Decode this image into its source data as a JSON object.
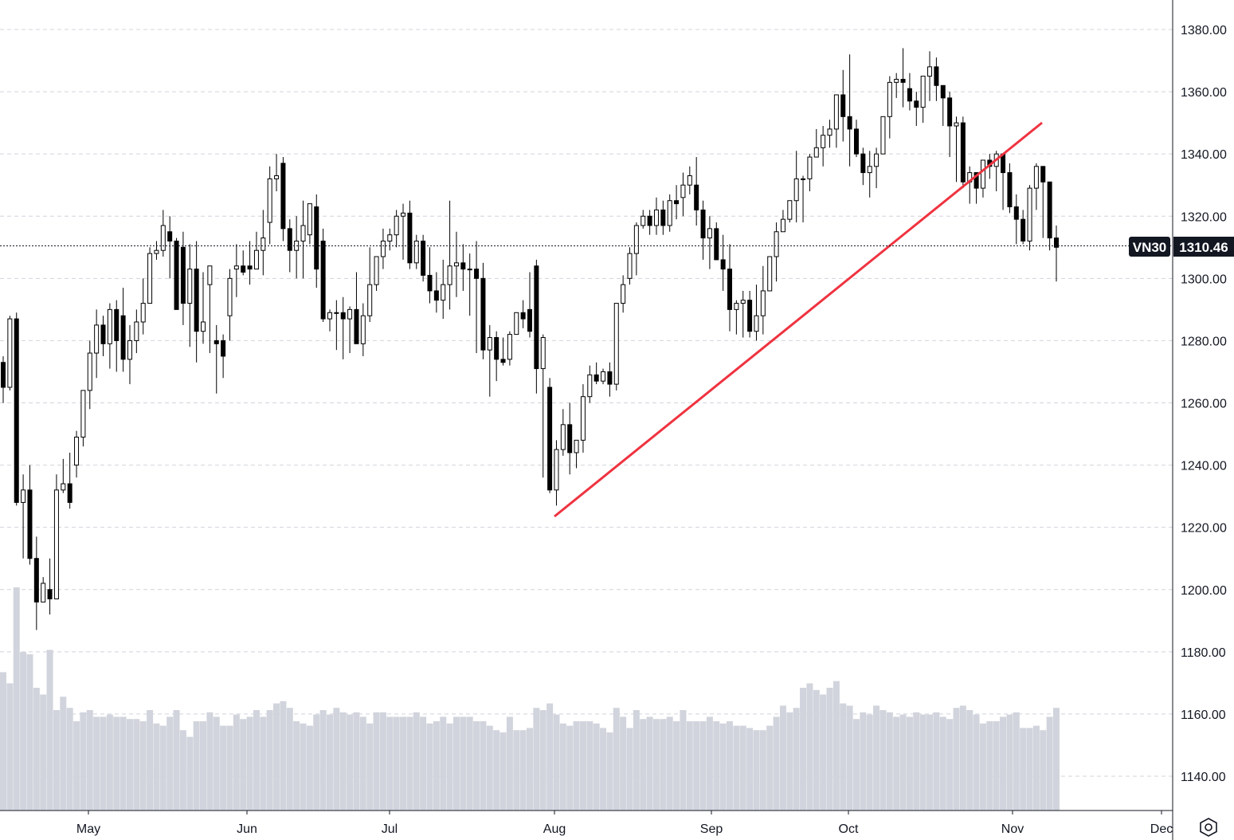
{
  "symbol": "VN30",
  "last_price": "1310.46",
  "chart_data": {
    "type": "candlestick",
    "y_ticks": [
      "1140.00",
      "1160.00",
      "1180.00",
      "1200.00",
      "1220.00",
      "1240.00",
      "1260.00",
      "1280.00",
      "1300.00",
      "1320.00",
      "1340.00",
      "1360.00",
      "1380.00"
    ],
    "x_ticks": [
      "May",
      "Jun",
      "Jul",
      "Aug",
      "Sep",
      "Oct",
      "Nov",
      "Dec"
    ],
    "ylim": [
      1128,
      1390
    ],
    "grid": true,
    "last_price_value": 1310.46,
    "volume_bars": "relative, light grey, at bottom",
    "candles_ohlc": [
      [
        1273,
        1275,
        1260,
        1265
      ],
      [
        1265,
        1288,
        1264,
        1287
      ],
      [
        1287,
        1289,
        1227,
        1228
      ],
      [
        1228,
        1237,
        1210,
        1232
      ],
      [
        1232,
        1240,
        1208,
        1210
      ],
      [
        1210,
        1217,
        1187,
        1196
      ],
      [
        1196,
        1204,
        1198,
        1202
      ],
      [
        1200,
        1210,
        1192,
        1197
      ],
      [
        1197,
        1237,
        1208,
        1232
      ],
      [
        1232,
        1242,
        1231,
        1234
      ],
      [
        1234,
        1244,
        1226,
        1228
      ],
      [
        1240,
        1251,
        1236,
        1249
      ],
      [
        1249,
        1264,
        1246,
        1264
      ],
      [
        1264,
        1280,
        1258,
        1276
      ],
      [
        1276,
        1290,
        1268,
        1285
      ],
      [
        1285,
        1288,
        1275,
        1279
      ],
      [
        1279,
        1292,
        1271,
        1290
      ],
      [
        1290,
        1293,
        1270,
        1280
      ],
      [
        1288,
        1297,
        1270,
        1274
      ],
      [
        1274,
        1285,
        1266,
        1280
      ],
      [
        1280,
        1290,
        1276,
        1286
      ],
      [
        1286,
        1300,
        1282,
        1292
      ],
      [
        1292,
        1310,
        1298,
        1308
      ],
      [
        1308,
        1312,
        1306,
        1309
      ],
      [
        1309,
        1322,
        1307,
        1317
      ],
      [
        1315,
        1320,
        1300,
        1312
      ],
      [
        1312,
        1313,
        1293,
        1290
      ],
      [
        1310,
        1315,
        1285,
        1292
      ],
      [
        1292,
        1311,
        1278,
        1303
      ],
      [
        1303,
        1312,
        1273,
        1283
      ],
      [
        1283,
        1302,
        1279,
        1286
      ],
      [
        1298,
        1303,
        1276,
        1304
      ],
      [
        1280,
        1285,
        1263,
        1279
      ],
      [
        1280,
        1282,
        1268,
        1275
      ],
      [
        1288,
        1303,
        1280,
        1300
      ],
      [
        1303,
        1311,
        1294,
        1304
      ],
      [
        1304,
        1309,
        1301,
        1302
      ],
      [
        1304,
        1312,
        1298,
        1303
      ],
      [
        1303,
        1315,
        1304,
        1309
      ],
      [
        1309,
        1322,
        1301,
        1313
      ],
      [
        1318,
        1336,
        1311,
        1332
      ],
      [
        1332,
        1340,
        1328,
        1333
      ],
      [
        1337,
        1339,
        1312,
        1316
      ],
      [
        1316,
        1319,
        1302,
        1309
      ],
      [
        1309,
        1320,
        1300,
        1312
      ],
      [
        1312,
        1325,
        1300,
        1317
      ],
      [
        1314,
        1320,
        1311,
        1324
      ],
      [
        1323,
        1327,
        1297,
        1303
      ],
      [
        1312,
        1316,
        1286,
        1287
      ],
      [
        1287,
        1290,
        1283,
        1289
      ],
      [
        1289,
        1293,
        1277,
        1289
      ],
      [
        1289,
        1294,
        1274,
        1287
      ],
      [
        1287,
        1291,
        1276,
        1290
      ],
      [
        1290,
        1302,
        1286,
        1279
      ],
      [
        1279,
        1292,
        1275,
        1288
      ],
      [
        1288,
        1310,
        1286,
        1298
      ],
      [
        1298,
        1307,
        1296,
        1307
      ],
      [
        1307,
        1316,
        1303,
        1312
      ],
      [
        1312,
        1316,
        1309,
        1314
      ],
      [
        1314,
        1322,
        1310,
        1320
      ],
      [
        1320,
        1324,
        1306,
        1321
      ],
      [
        1321,
        1325,
        1303,
        1305
      ],
      [
        1305,
        1314,
        1303,
        1312
      ],
      [
        1312,
        1314,
        1299,
        1301
      ],
      [
        1301,
        1310,
        1292,
        1296
      ],
      [
        1296,
        1302,
        1289,
        1293
      ],
      [
        1293,
        1306,
        1287,
        1298
      ],
      [
        1298,
        1325,
        1290,
        1304
      ],
      [
        1304,
        1315,
        1294,
        1305
      ],
      [
        1305,
        1311,
        1296,
        1303
      ],
      [
        1303,
        1308,
        1288,
        1303
      ],
      [
        1303,
        1312,
        1276,
        1300
      ],
      [
        1300,
        1305,
        1274,
        1277
      ],
      [
        1277,
        1285,
        1262,
        1281
      ],
      [
        1281,
        1283,
        1267,
        1274
      ],
      [
        1274,
        1281,
        1272,
        1273
      ],
      [
        1274,
        1283,
        1272,
        1282
      ],
      [
        1282,
        1289,
        1283,
        1289
      ],
      [
        1289,
        1293,
        1284,
        1287
      ],
      [
        1290,
        1302,
        1281,
        1283
      ],
      [
        1304,
        1306,
        1263,
        1271
      ],
      [
        1271,
        1282,
        1236,
        1281
      ],
      [
        1265,
        1268,
        1231,
        1232
      ],
      [
        1232,
        1248,
        1227,
        1245
      ],
      [
        1245,
        1258,
        1243,
        1253
      ],
      [
        1253,
        1260,
        1237,
        1244
      ],
      [
        1244,
        1248,
        1239,
        1248
      ],
      [
        1248,
        1266,
        1244,
        1262
      ],
      [
        1262,
        1272,
        1260,
        1269
      ],
      [
        1269,
        1273,
        1266,
        1267
      ],
      [
        1267,
        1271,
        1266,
        1270
      ],
      [
        1270,
        1273,
        1262,
        1266
      ],
      [
        1266,
        1274,
        1264,
        1292
      ],
      [
        1292,
        1301,
        1289,
        1298
      ],
      [
        1300,
        1310,
        1298,
        1308
      ],
      [
        1308,
        1318,
        1301,
        1317
      ],
      [
        1317,
        1322,
        1316,
        1320
      ],
      [
        1320,
        1322,
        1314,
        1317
      ],
      [
        1317,
        1326,
        1314,
        1322
      ],
      [
        1322,
        1325,
        1314,
        1317
      ],
      [
        1317,
        1327,
        1315,
        1325
      ],
      [
        1325,
        1330,
        1319,
        1324
      ],
      [
        1326,
        1334,
        1320,
        1330
      ],
      [
        1330,
        1336,
        1327,
        1333
      ],
      [
        1330,
        1339,
        1317,
        1322
      ],
      [
        1322,
        1325,
        1306,
        1313
      ],
      [
        1313,
        1320,
        1303,
        1316
      ],
      [
        1316,
        1318,
        1310,
        1306
      ],
      [
        1306,
        1314,
        1296,
        1303
      ],
      [
        1303,
        1311,
        1283,
        1290
      ],
      [
        1290,
        1293,
        1282,
        1292
      ],
      [
        1292,
        1296,
        1281,
        1293
      ],
      [
        1293,
        1296,
        1281,
        1283
      ],
      [
        1283,
        1298,
        1280,
        1288
      ],
      [
        1288,
        1304,
        1282,
        1296
      ],
      [
        1296,
        1306,
        1301,
        1307
      ],
      [
        1307,
        1318,
        1299,
        1315
      ],
      [
        1315,
        1322,
        1318,
        1319
      ],
      [
        1319,
        1324,
        1318,
        1325
      ],
      [
        1325,
        1341,
        1318,
        1332
      ],
      [
        1332,
        1333,
        1318,
        1332
      ],
      [
        1332,
        1340,
        1328,
        1339
      ],
      [
        1339,
        1348,
        1339,
        1342
      ],
      [
        1342,
        1349,
        1336,
        1346
      ],
      [
        1346,
        1351,
        1342,
        1348
      ],
      [
        1348,
        1357,
        1342,
        1359
      ],
      [
        1359,
        1367,
        1344,
        1352
      ],
      [
        1352,
        1372,
        1336,
        1348
      ],
      [
        1348,
        1351,
        1339,
        1340
      ],
      [
        1340,
        1342,
        1330,
        1334
      ],
      [
        1334,
        1341,
        1326,
        1336
      ],
      [
        1336,
        1342,
        1329,
        1340
      ],
      [
        1340,
        1352,
        1340,
        1352
      ],
      [
        1352,
        1365,
        1345,
        1363
      ],
      [
        1363,
        1366,
        1358,
        1364
      ],
      [
        1364,
        1374,
        1355,
        1363
      ],
      [
        1361,
        1366,
        1354,
        1357
      ],
      [
        1357,
        1360,
        1349,
        1355
      ],
      [
        1355,
        1358,
        1350,
        1365
      ],
      [
        1365,
        1373,
        1357,
        1368
      ],
      [
        1368,
        1371,
        1357,
        1362
      ],
      [
        1362,
        1361,
        1349,
        1358
      ],
      [
        1358,
        1360,
        1339,
        1349
      ],
      [
        1349,
        1352,
        1331,
        1350
      ],
      [
        1350,
        1352,
        1329,
        1331
      ],
      [
        1331,
        1336,
        1324,
        1334
      ],
      [
        1334,
        1331,
        1324,
        1329
      ],
      [
        1329,
        1336,
        1326,
        1338
      ],
      [
        1338,
        1340,
        1332,
        1336
      ],
      [
        1336,
        1341,
        1328,
        1340
      ],
      [
        1340,
        1338,
        1322,
        1334
      ],
      [
        1334,
        1337,
        1321,
        1323
      ],
      [
        1323,
        1327,
        1311,
        1319
      ],
      [
        1319,
        1322,
        1311,
        1312
      ],
      [
        1312,
        1330,
        1309,
        1329
      ],
      [
        1329,
        1337,
        1322,
        1336
      ],
      [
        1336,
        1336,
        1313,
        1331
      ],
      [
        1331,
        1317,
        1309,
        1313
      ],
      [
        1313,
        1317,
        1299,
        1310
      ]
    ],
    "volumes": [
      62,
      57,
      100,
      71,
      70,
      55,
      52,
      72,
      45,
      51,
      46,
      40,
      44,
      45,
      42,
      42,
      43,
      42,
      42,
      41,
      41,
      40,
      45,
      39,
      38,
      42,
      45,
      36,
      33,
      40,
      40,
      44,
      42,
      38,
      38,
      43,
      41,
      42,
      45,
      42,
      45,
      48,
      49,
      46,
      40,
      39,
      38,
      43,
      45,
      43,
      46,
      44,
      43,
      44,
      42,
      39,
      44,
      44,
      42,
      42,
      42,
      42,
      44,
      42,
      39,
      40,
      42,
      39,
      42,
      42,
      42,
      40,
      40,
      38,
      36,
      35,
      42,
      36,
      36,
      37,
      46,
      45,
      48,
      43,
      39,
      38,
      40,
      40,
      40,
      39,
      37,
      35,
      46,
      42,
      37,
      45,
      41,
      42,
      41,
      41,
      42,
      40,
      45,
      40,
      40,
      40,
      42,
      40,
      39,
      40,
      38,
      38,
      37,
      36,
      36,
      38,
      42,
      47,
      44,
      46,
      55,
      57,
      54,
      52,
      55,
      58,
      48,
      47,
      41,
      44,
      43,
      47,
      45,
      44,
      42,
      43,
      42,
      44,
      43,
      43,
      44,
      42,
      41,
      46,
      47,
      45,
      43,
      39,
      40,
      40,
      42,
      43,
      44,
      37,
      37,
      38,
      36,
      42,
      46
    ]
  }
}
